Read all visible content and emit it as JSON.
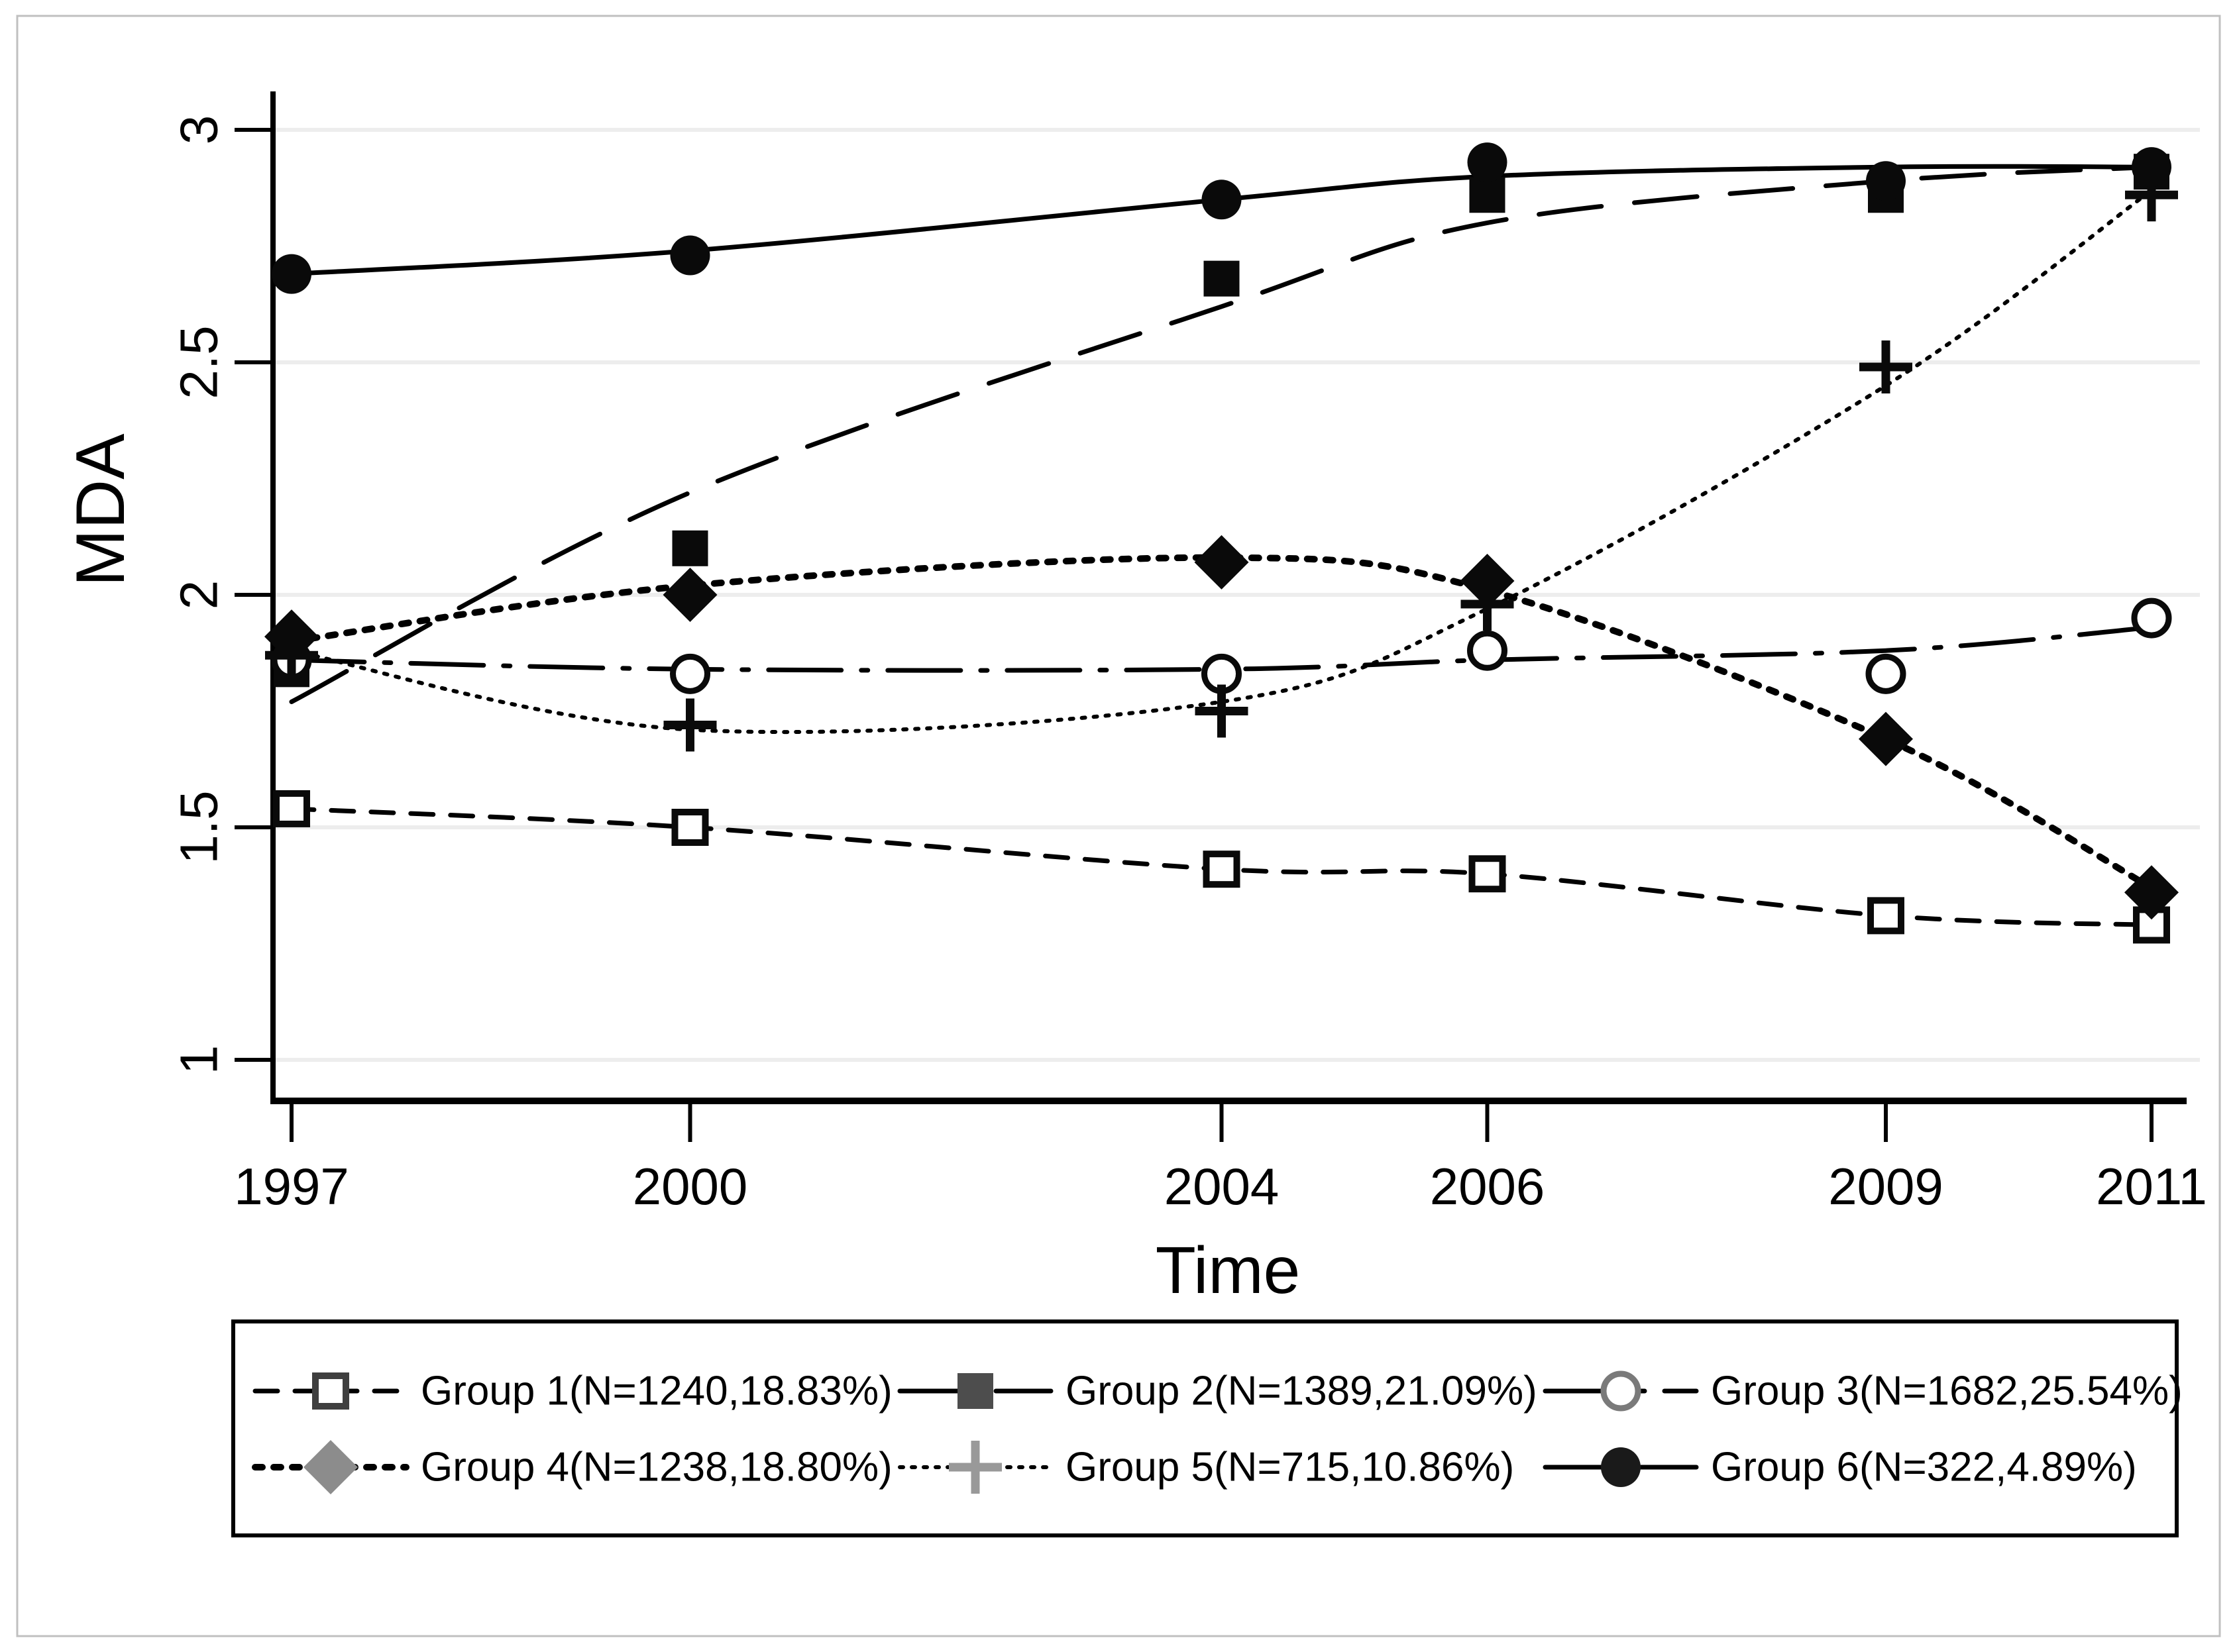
{
  "chart_data": {
    "type": "line",
    "title": "",
    "xlabel": "Time",
    "ylabel": "MDA",
    "x": [
      1997,
      2000,
      2004,
      2006,
      2009,
      2011
    ],
    "xtick_labels": [
      "1997",
      "2000",
      "2004",
      "2006",
      "2009",
      "2011"
    ],
    "yticks": [
      1,
      1.5,
      2,
      2.5,
      3
    ],
    "ytick_labels": [
      "1",
      "1.5",
      "2",
      "2.5",
      "3"
    ],
    "xlim": [
      1996.85,
      2011.25
    ],
    "ylim": [
      0.91,
      3.08
    ],
    "grid": "horizontal-light-gray",
    "legend_position": "bottom-center-box",
    "legend_rows": 2,
    "legend_cols": 3,
    "series": [
      {
        "name": "Group 1(N=1240,18.83%)",
        "marker": "hollow-square",
        "line_style": "dash",
        "values": [
          1.54,
          1.5,
          1.41,
          1.4,
          1.31,
          1.29
        ],
        "legend_marker_color": "#3f3f3f"
      },
      {
        "name": "Group 2(N=1389,21.09%)",
        "marker": "filled-square",
        "line_style": "longdash",
        "values": [
          1.84,
          2.1,
          2.68,
          2.86,
          2.86,
          2.91
        ],
        "curve_values": [
          1.77,
          2.22,
          2.62,
          2.8,
          2.89,
          2.92
        ],
        "legend_marker_color": "#4d4d4d"
      },
      {
        "name": "Group 3(N=1682,25.54%)",
        "marker": "hollow-circle",
        "line_style": "dashdot",
        "values": [
          1.86,
          1.83,
          1.83,
          1.88,
          1.83,
          1.95
        ],
        "curve_values": [
          1.86,
          1.84,
          1.84,
          1.86,
          1.88,
          1.93
        ],
        "legend_marker_color": "#7a7a7a"
      },
      {
        "name": "Group 4(N=1238,18.80%)",
        "marker": "filled-diamond",
        "line_style": "dot",
        "values": [
          1.91,
          2.0,
          2.07,
          2.03,
          1.69,
          1.36
        ],
        "curve_values": [
          1.9,
          2.02,
          2.08,
          2.01,
          1.69,
          1.37
        ],
        "legend_marker_color": "#8c8c8c"
      },
      {
        "name": "Group 5(N=715,10.86%)",
        "marker": "plus",
        "line_style": "finedot",
        "values": [
          1.87,
          1.72,
          1.75,
          1.98,
          2.49,
          2.86
        ],
        "curve_values": [
          1.88,
          1.71,
          1.77,
          1.97,
          2.45,
          2.87
        ],
        "legend_marker_color": "#999999"
      },
      {
        "name": "Group 6(N=322,4.89%)",
        "marker": "filled-circle",
        "line_style": "solid",
        "values": [
          2.69,
          2.73,
          2.85,
          2.93,
          2.89,
          2.92
        ],
        "curve_values": [
          2.69,
          2.74,
          2.85,
          2.9,
          2.92,
          2.92
        ],
        "legend_marker_color": "#1a1a1a"
      }
    ],
    "colors": {
      "line": "#000000",
      "plot_marker": "#0a0a0a",
      "grid": "#ededed",
      "axis": "#000000",
      "legend_border": "#000000",
      "figure_border": "#c0c0c0",
      "background": "#ffffff"
    }
  }
}
